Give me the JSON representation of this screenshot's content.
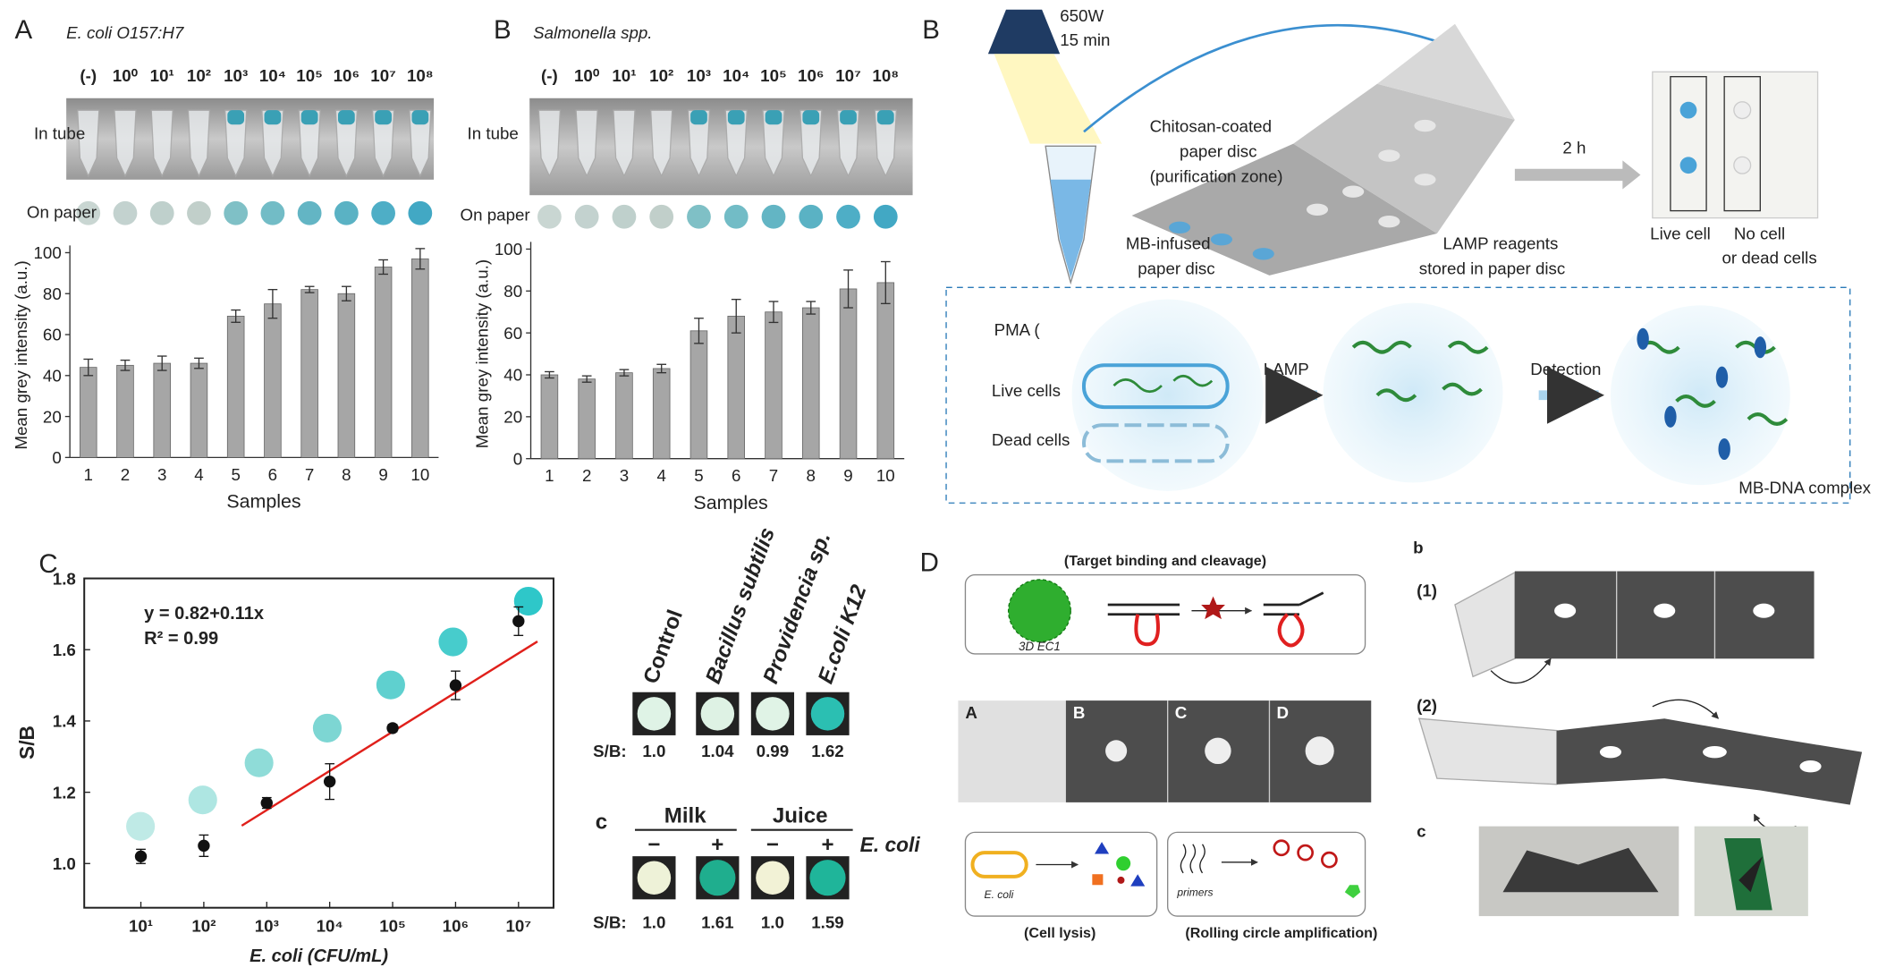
{
  "chart_data": [
    {
      "type": "bar",
      "label": "A",
      "title": "E. coli O157:H7",
      "row_labels": [
        "In tube",
        "On paper"
      ],
      "concentrations": [
        "(-)",
        "10⁰",
        "10¹",
        "10²",
        "10³",
        "10⁴",
        "10⁵",
        "10⁶",
        "10⁷",
        "10⁸"
      ],
      "categories": [
        "1",
        "2",
        "3",
        "4",
        "5",
        "6",
        "7",
        "8",
        "9",
        "10"
      ],
      "values": [
        44,
        45,
        46,
        46,
        69,
        75,
        82,
        80,
        93,
        97
      ],
      "errors": [
        4,
        2.5,
        3.5,
        2.5,
        3,
        7,
        1.5,
        3.5,
        3.5,
        5
      ],
      "color": "#a6a6a6",
      "ylabel": "Mean grey intensity (a.u.)",
      "xlabel": "Samples",
      "ylim": [
        0,
        100
      ],
      "yticks": [
        0,
        20,
        40,
        60,
        80,
        100
      ]
    },
    {
      "type": "bar",
      "label": "B",
      "title": "Salmonella spp.",
      "row_labels": [
        "In tube",
        "On paper"
      ],
      "concentrations": [
        "(-)",
        "10⁰",
        "10¹",
        "10²",
        "10³",
        "10⁴",
        "10⁵",
        "10⁶",
        "10⁷",
        "10⁸"
      ],
      "categories": [
        "1",
        "2",
        "3",
        "4",
        "5",
        "6",
        "7",
        "8",
        "9",
        "10"
      ],
      "values": [
        40,
        38,
        41,
        43,
        61,
        68,
        70,
        72,
        81,
        84
      ],
      "errors": [
        1.5,
        1.5,
        1.5,
        2,
        6,
        8,
        5,
        3,
        9,
        10
      ],
      "color": "#a6a6a6",
      "ylabel": "Mean grey intensity (a.u.)",
      "xlabel": "Samples",
      "ylim": [
        0,
        100
      ],
      "yticks": [
        0,
        20,
        40,
        60,
        80,
        100
      ]
    },
    {
      "type": "scatter",
      "label": "C",
      "equation": "y = 0.82+0.11x",
      "r2": "R² = 0.99",
      "x": [
        10,
        100,
        1000,
        10000,
        100000,
        1000000,
        10000000
      ],
      "values": [
        1.02,
        1.05,
        1.17,
        1.23,
        1.38,
        1.5,
        1.68
      ],
      "errors": [
        0.02,
        0.03,
        0.015,
        0.05,
        0.01,
        0.04,
        0.04
      ],
      "color": "#111111",
      "fit": {
        "intercept": 0.82,
        "slope": 0.11,
        "x_range": [
          400,
          20000000
        ],
        "color": "#e0201b"
      },
      "ylabel": "S/B",
      "xlabel": "E. coli (CFU/mL)",
      "xlog": true,
      "xlim": [
        1.26,
        36000000
      ],
      "xticks": [
        {
          "value": 10,
          "label": "10¹"
        },
        {
          "value": 100,
          "label": "10²"
        },
        {
          "value": 1000,
          "label": "10³"
        },
        {
          "value": 10000,
          "label": "10⁴"
        },
        {
          "value": 100000,
          "label": "10⁵"
        },
        {
          "value": 1000000,
          "label": "10⁶"
        },
        {
          "value": 10000000,
          "label": "10⁷"
        }
      ],
      "ylim": [
        0.876,
        1.8
      ],
      "yticks": [
        {
          "value": 1,
          "label": "1.0"
        },
        1.2,
        1.4,
        1.6,
        1.8
      ]
    }
  ],
  "figure": {
    "panel_b": {
      "label": "B",
      "lamp_power": "650W",
      "lamp_time": "15 min",
      "chitosan": [
        "Chitosan-coated",
        "paper disc",
        "(purification zone)"
      ],
      "time": "2 h",
      "mb_disc": [
        "MB-infused",
        "paper disc"
      ],
      "lamp_reagents": [
        "LAMP reagents",
        "stored in paper disc"
      ],
      "live_cell": "Live cell",
      "no_cell": [
        "No cell",
        "or dead cells"
      ],
      "pma": "PMA (",
      "live_cells": "Live cells",
      "dead_cells": "Dead cells",
      "lamp": "LAMP",
      "detection": "Detection",
      "complex": "MB-DNA complex"
    },
    "panel_c_side": {
      "strains": [
        "Control",
        "Bacillus subtilis",
        "Providencia sp.",
        "E.coli K12"
      ],
      "sb_label": "S/B:",
      "strain_sb": [
        "1.0",
        "1.04",
        "0.99",
        "1.62"
      ],
      "sub_label": "c",
      "samples": [
        "Milk",
        "Juice"
      ],
      "signs": [
        "−",
        "+",
        "−",
        "+"
      ],
      "target": "E. coli",
      "sample_sb": [
        "1.0",
        "1.61",
        "1.0",
        "1.59"
      ]
    },
    "panel_d": {
      "label": "D",
      "top_caption": "(Target binding and cleavage)",
      "particle": "3D EC1",
      "zones": [
        "A",
        "B",
        "C",
        "D"
      ],
      "cell": "E. coli",
      "primers": "primers",
      "lysis": "(Cell lysis)",
      "rca": "(Rolling circle amplification)",
      "sub_b": "b",
      "steps": [
        "(1)",
        "(2)"
      ],
      "sub_c": "c"
    }
  }
}
